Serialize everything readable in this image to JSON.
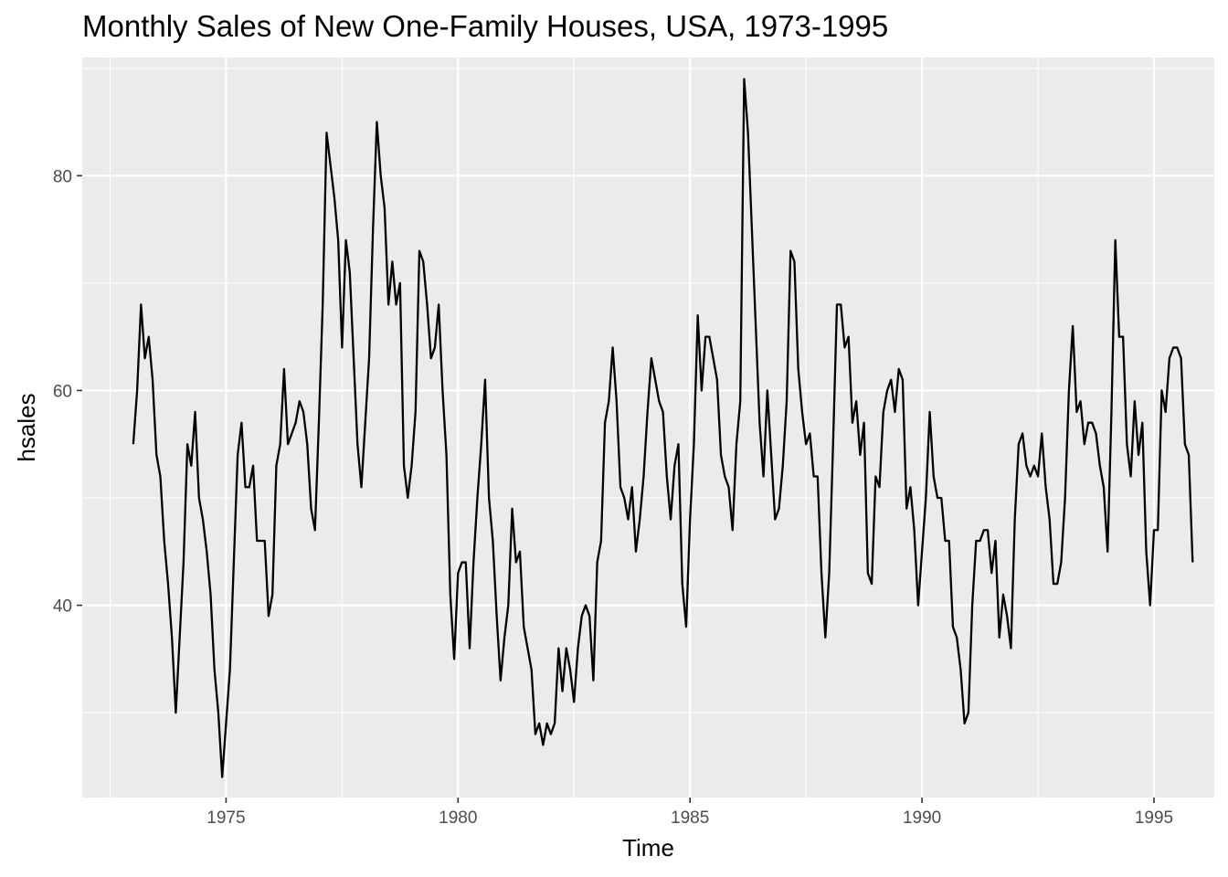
{
  "chart_data": {
    "type": "line",
    "title": "Monthly Sales of New One-Family Houses, USA, 1973-1995",
    "xlabel": "Time",
    "ylabel": "hsales",
    "xlim": [
      1971.9,
      1996.3
    ],
    "ylim": [
      22.1,
      91.0
    ],
    "x_ticks": [
      1975,
      1980,
      1985,
      1990,
      1995
    ],
    "x_tick_labels": [
      "1975",
      "1980",
      "1985",
      "1990",
      "1995"
    ],
    "y_ticks": [
      40,
      60,
      80
    ],
    "y_tick_labels": [
      "40",
      "60",
      "80"
    ],
    "grid": true,
    "legend": "none",
    "colors": {
      "panel": "#ebebeb",
      "grid": "#ffffff",
      "line": "#000000",
      "tick": "#333333"
    },
    "start": [
      1973,
      1
    ],
    "frequency": 12,
    "series": [
      {
        "values": [
          55,
          60,
          68,
          63,
          65,
          61,
          54,
          52,
          46,
          42,
          37,
          30,
          37,
          44,
          55,
          53,
          58,
          50,
          48,
          45,
          41,
          34,
          30,
          24,
          29,
          34,
          44,
          54,
          57,
          51,
          51,
          53,
          46,
          46,
          46,
          39,
          41,
          53,
          55,
          62,
          55,
          56,
          57,
          59,
          58,
          55,
          49,
          47,
          57,
          68,
          84,
          81,
          78,
          74,
          64,
          74,
          71,
          63,
          55,
          51,
          57,
          63,
          75,
          85,
          80,
          77,
          68,
          72,
          68,
          70,
          53,
          50,
          53,
          58,
          73,
          72,
          68,
          63,
          64,
          68,
          60,
          54,
          41,
          35,
          43,
          44,
          44,
          36,
          44,
          50,
          55,
          61,
          50,
          46,
          39,
          33,
          37,
          40,
          49,
          44,
          45,
          38,
          36,
          34,
          28,
          29,
          27,
          29,
          28,
          29,
          36,
          32,
          36,
          34,
          31,
          36,
          39,
          40,
          39,
          33,
          44,
          46,
          57,
          59,
          64,
          59,
          51,
          50,
          48,
          51,
          45,
          48,
          52,
          58,
          63,
          61,
          59,
          58,
          52,
          48,
          53,
          55,
          42,
          38,
          48,
          55,
          67,
          60,
          65,
          65,
          63,
          61,
          54,
          52,
          51,
          47,
          55,
          59,
          89,
          84,
          75,
          66,
          57,
          52,
          60,
          54,
          48,
          49,
          53,
          59,
          73,
          72,
          62,
          58,
          55,
          56,
          52,
          52,
          43,
          37,
          43,
          55,
          68,
          68,
          64,
          65,
          57,
          59,
          54,
          57,
          43,
          42,
          52,
          51,
          58,
          60,
          61,
          58,
          62,
          61,
          49,
          51,
          47,
          40,
          45,
          50,
          58,
          52,
          50,
          50,
          46,
          46,
          38,
          37,
          34,
          29,
          30,
          40,
          46,
          46,
          47,
          47,
          43,
          46,
          37,
          41,
          39,
          36,
          48,
          55,
          56,
          53,
          52,
          53,
          52,
          56,
          51,
          48,
          42,
          42,
          44,
          50,
          60,
          66,
          58,
          59,
          55,
          57,
          57,
          56,
          53,
          51,
          45,
          58,
          74,
          65,
          65,
          55,
          52,
          59,
          54,
          57,
          45,
          40,
          47,
          47,
          60,
          58,
          63,
          64,
          64,
          63,
          55,
          54,
          44
        ]
      }
    ]
  }
}
